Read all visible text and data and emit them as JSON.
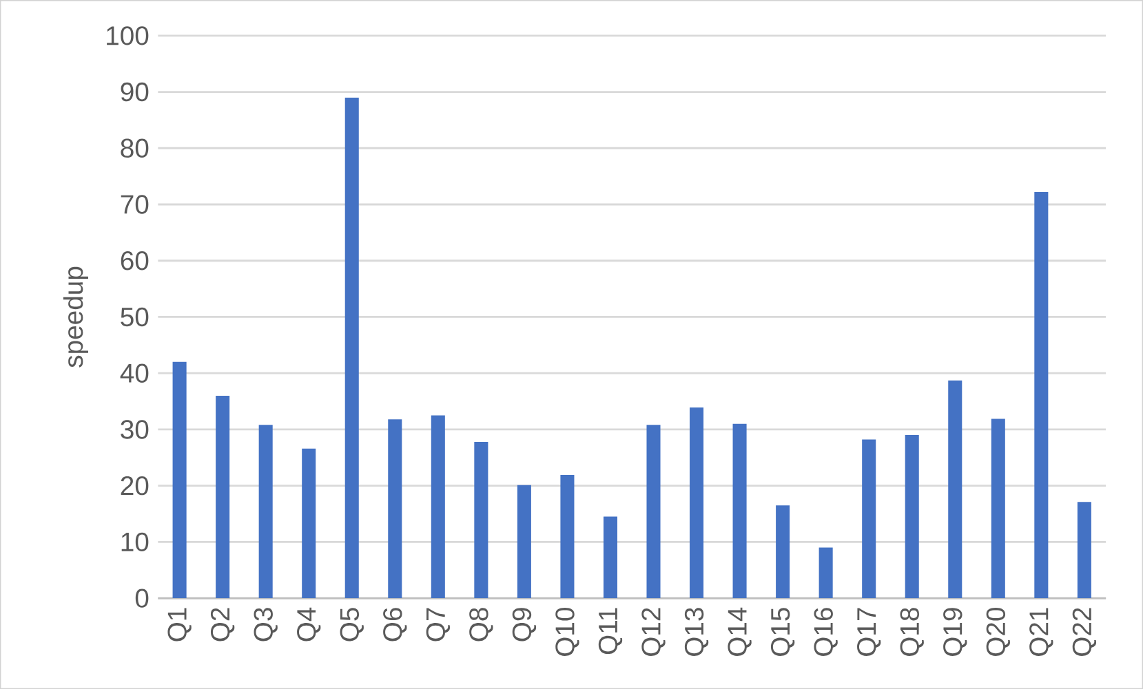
{
  "chart_data": {
    "type": "bar",
    "ylabel": "speedup",
    "categories": [
      "Q1",
      "Q2",
      "Q3",
      "Q4",
      "Q5",
      "Q6",
      "Q7",
      "Q8",
      "Q9",
      "Q10",
      "Q11",
      "Q12",
      "Q13",
      "Q14",
      "Q15",
      "Q16",
      "Q17",
      "Q18",
      "Q19",
      "Q20",
      "Q21",
      "Q22"
    ],
    "values": [
      42,
      36,
      30.8,
      26.6,
      89,
      31.8,
      32.5,
      27.8,
      20.1,
      21.9,
      14.5,
      30.8,
      33.9,
      31,
      16.5,
      9,
      28.2,
      29,
      38.7,
      31.9,
      72.2,
      17.1
    ],
    "color": "#4472c4",
    "ylim": [
      0,
      100
    ],
    "yticks": [
      0,
      10,
      20,
      30,
      40,
      50,
      60,
      70,
      80,
      90,
      100
    ],
    "grid": "y"
  }
}
